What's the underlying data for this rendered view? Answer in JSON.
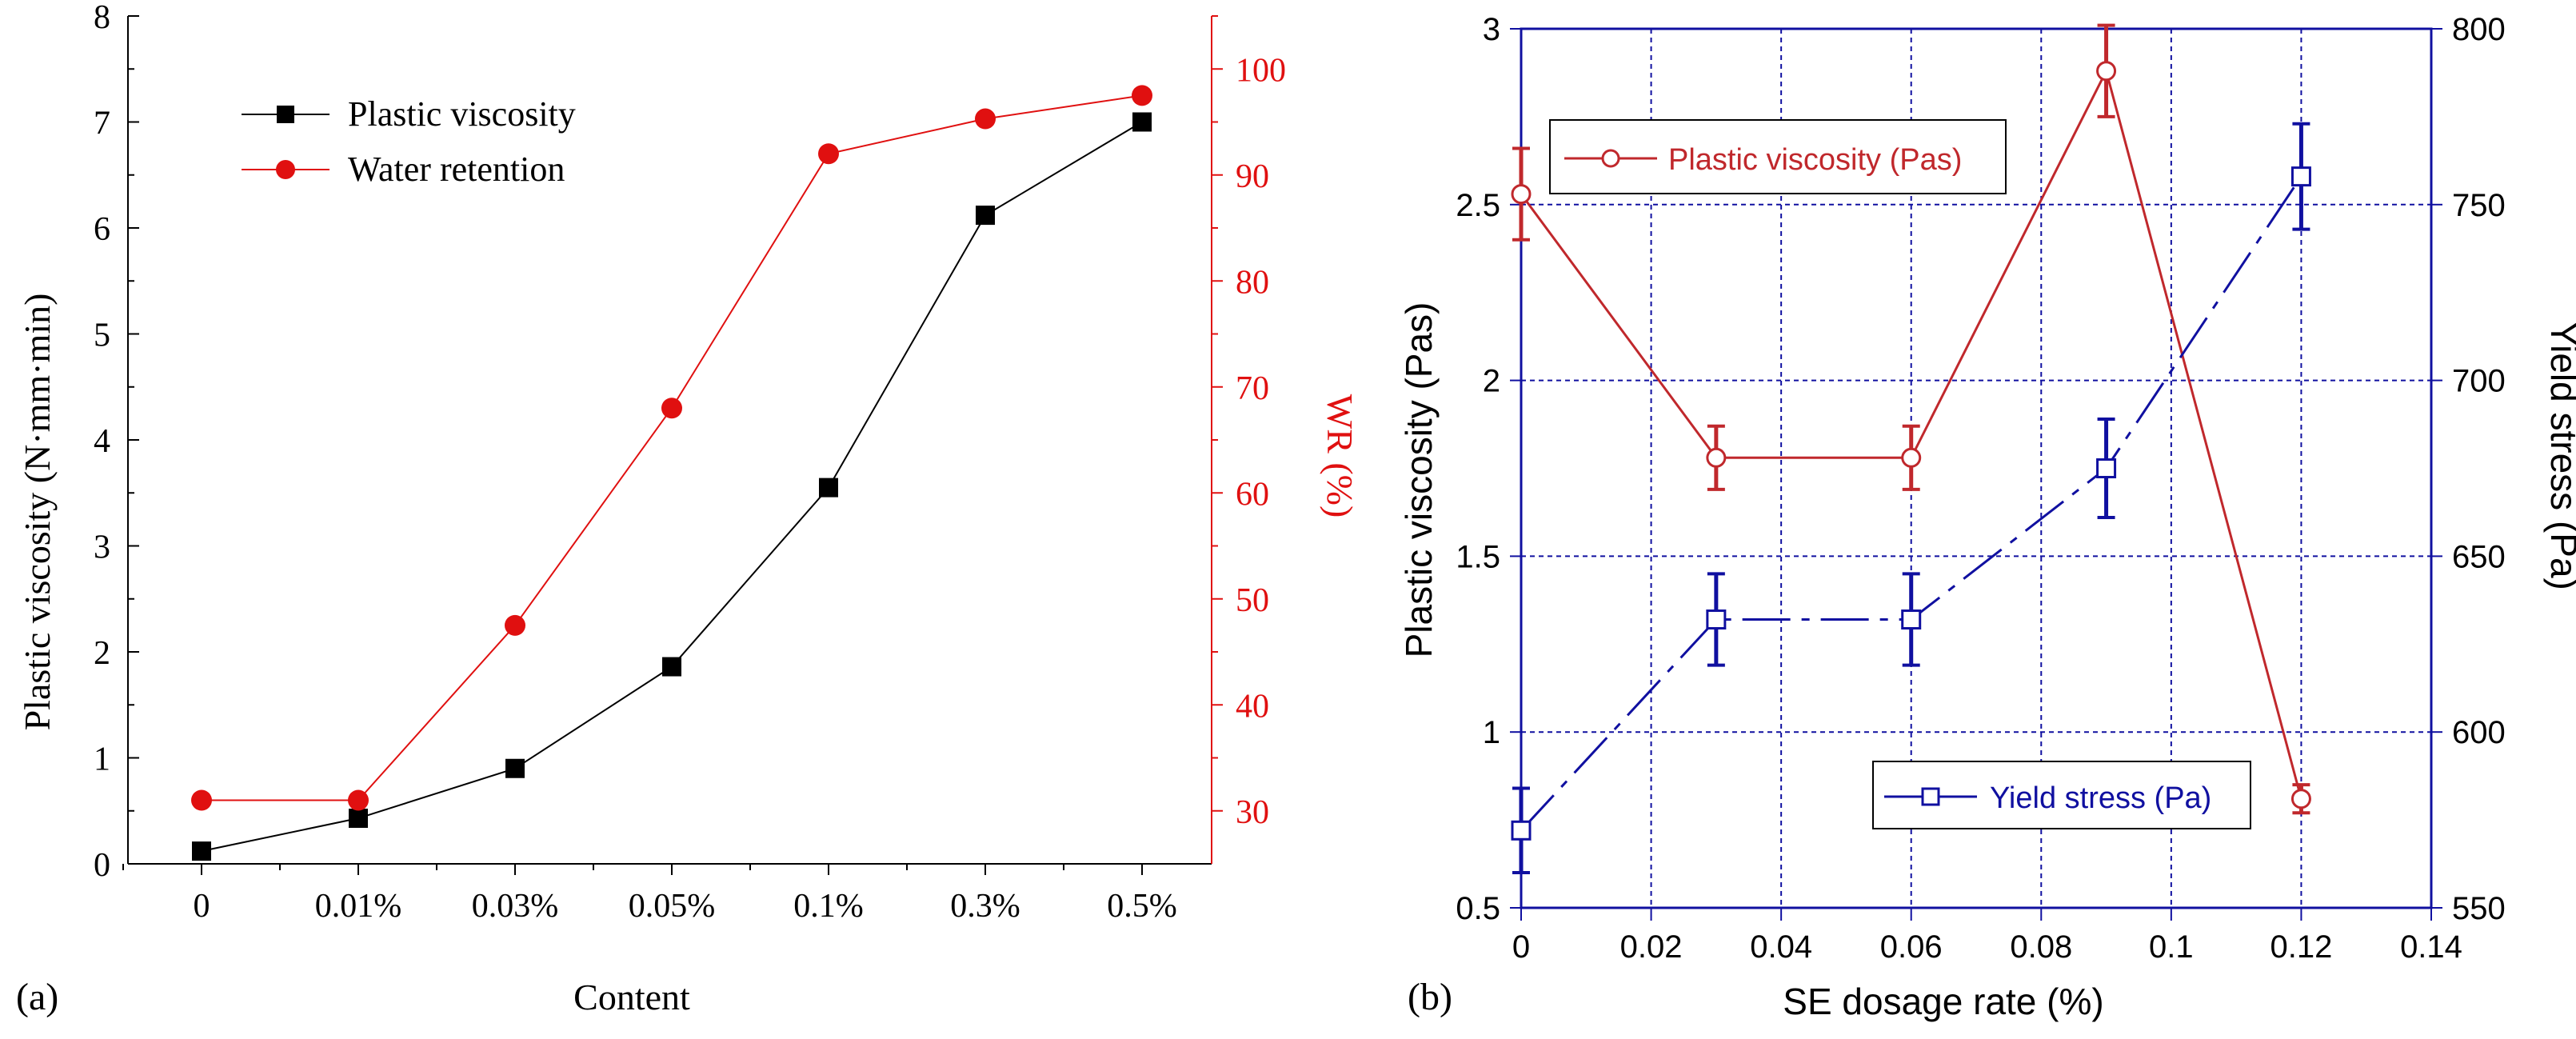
{
  "panels": {
    "a": {
      "label": "(a)"
    },
    "b": {
      "label": "(b)"
    }
  },
  "colors": {
    "black": "#000000",
    "red": "#e01010",
    "darkred": "#c0282c",
    "blue": "#1010a0",
    "white": "#ffffff"
  },
  "chart_data": [
    {
      "id": "a",
      "type": "line",
      "xlabel": "Content",
      "categories": [
        "0",
        "0.01%",
        "0.03%",
        "0.05%",
        "0.1%",
        "0.3%",
        "0.5%"
      ],
      "ylabel_left": "Plastic viscosity (N·mm·min)",
      "ylim_left": [
        0,
        8
      ],
      "yticks_left": [
        0,
        1,
        2,
        3,
        4,
        5,
        6,
        7,
        8
      ],
      "ylabel_right": "WR (%)",
      "ylim_right": [
        25,
        105
      ],
      "yticks_right": [
        30,
        40,
        50,
        60,
        70,
        80,
        90,
        100
      ],
      "series": [
        {
          "name": "Plastic viscosity",
          "axis": "left",
          "marker": "square",
          "color": "#000000",
          "values": [
            0.12,
            0.43,
            0.9,
            1.86,
            3.55,
            6.12,
            7.0
          ]
        },
        {
          "name": "Water retention",
          "axis": "right",
          "marker": "circle",
          "color": "#e01010",
          "values": [
            31.0,
            31.0,
            47.5,
            68.0,
            92.0,
            95.3,
            97.5
          ]
        }
      ],
      "legend": [
        "Plastic viscosity",
        "Water retention"
      ],
      "legend_position": "top-left"
    },
    {
      "id": "b",
      "type": "line",
      "xlabel": "SE dosage rate (%)",
      "xlim": [
        0,
        0.14
      ],
      "xticks": [
        0,
        0.02,
        0.04,
        0.06,
        0.08,
        0.1,
        0.12,
        0.14
      ],
      "xtick_labels": [
        "0",
        "0.02",
        "0.04",
        "0.06",
        "0.08",
        "0.1",
        "0.12",
        "0.14"
      ],
      "ylabel_left": "Plastic viscosity (Pas)",
      "ylim_left": [
        0.5,
        3
      ],
      "yticks_left": [
        0.5,
        1,
        1.5,
        2,
        2.5,
        3
      ],
      "ytick_labels_left": [
        "0.5",
        "1",
        "1.5",
        "2",
        "2.5",
        "3"
      ],
      "ylabel_right": "Yield stress (Pa)",
      "ylim_right": [
        550,
        800
      ],
      "yticks_right": [
        550,
        600,
        650,
        700,
        750,
        800
      ],
      "ytick_labels_right": [
        "550",
        "600",
        "650",
        "700",
        "750",
        "800"
      ],
      "grid": true,
      "series": [
        {
          "name": "Plastic viscosity  (Pas)",
          "axis": "left",
          "marker": "open-circle",
          "color": "#c0282c",
          "line": "solid",
          "x": [
            0,
            0.03,
            0.06,
            0.09,
            0.12
          ],
          "values": [
            2.53,
            1.78,
            1.78,
            2.88,
            0.81
          ],
          "errors": [
            0.13,
            0.09,
            0.09,
            0.13,
            0.04
          ]
        },
        {
          "name": "Yield stress (Pa)",
          "axis": "right",
          "marker": "open-square",
          "color": "#1010a0",
          "line": "dashed",
          "x": [
            0,
            0.03,
            0.06,
            0.09,
            0.12
          ],
          "values": [
            572,
            632,
            632,
            675,
            758
          ],
          "errors": [
            12,
            13,
            13,
            14,
            15
          ]
        }
      ],
      "legend_positions": {
        "Plastic viscosity  (Pas)": "top-left",
        "Yield stress (Pa)": "bottom-right"
      }
    }
  ]
}
